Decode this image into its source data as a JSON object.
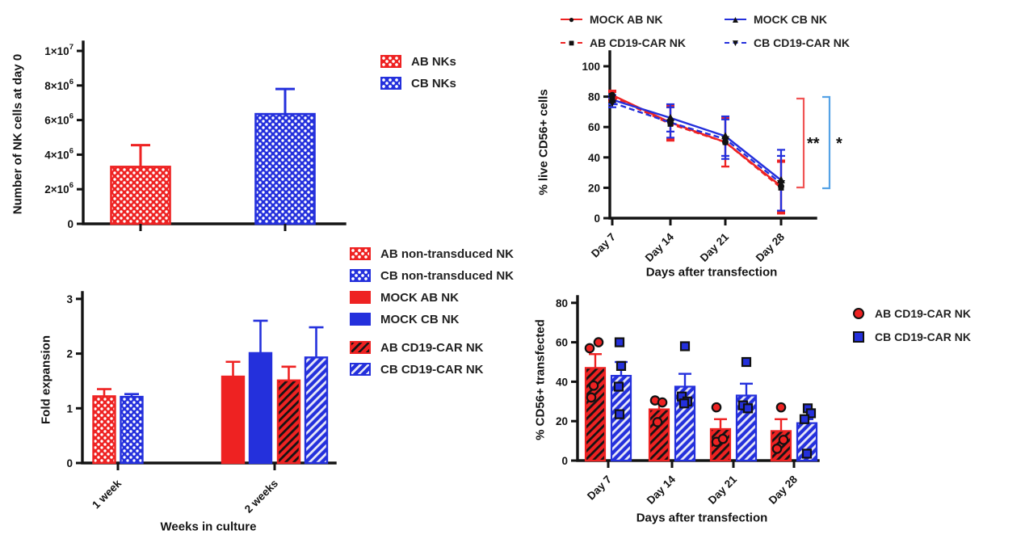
{
  "figure": {
    "background": "#FFFFFF"
  },
  "colors": {
    "red": "#EE2222",
    "blue": "#2430DC",
    "light_red": "#F05454",
    "light_blue": "#55A2E6"
  },
  "chart_data": [
    {
      "id": "nk-cells-day0",
      "type": "bar",
      "title": "",
      "ylabel": "Number of NK cells at day 0",
      "xlabel": "",
      "categories": [
        "AB NKs",
        "CB NKs"
      ],
      "values": [
        3300000,
        6350000
      ],
      "error_tops": [
        4550000,
        7800000
      ],
      "ylim": [
        0,
        10000000
      ],
      "yticks": [
        {
          "label": "0",
          "value": 0
        },
        {
          "label": "2×10",
          "sup": "6",
          "value": 2000000
        },
        {
          "label": "4×10",
          "sup": "6",
          "value": 4000000
        },
        {
          "label": "6×10",
          "sup": "6",
          "value": 6000000
        },
        {
          "label": "8×10",
          "sup": "6",
          "value": 8000000
        },
        {
          "label": "1×10",
          "sup": "7",
          "value": 10000000
        }
      ],
      "legend": [
        {
          "label": "AB NKs",
          "fill": "checker-red"
        },
        {
          "label": "CB NKs",
          "fill": "checker-blue"
        }
      ]
    },
    {
      "id": "live-cd56",
      "type": "line",
      "ylabel": "% live CD56+ cells",
      "xlabel": "Days after transfection",
      "categories": [
        "Day 7",
        "Day 14",
        "Day 21",
        "Day 28"
      ],
      "ylim": [
        0,
        100
      ],
      "yticks": [
        0,
        20,
        40,
        60,
        80,
        100
      ],
      "series": [
        {
          "name": "MOCK AB NK",
          "color": "red",
          "line": "solid",
          "marker": "circle",
          "values": [
            81,
            63,
            50,
            21
          ],
          "errors": [
            3,
            11,
            16,
            17
          ]
        },
        {
          "name": "AB CD19-CAR NK",
          "color": "red",
          "line": "dashed",
          "marker": "square",
          "values": [
            80,
            62,
            50,
            20
          ],
          "errors": [
            3,
            11,
            16,
            17
          ]
        },
        {
          "name": "MOCK CB NK",
          "color": "blue",
          "line": "solid",
          "marker": "triangle-up",
          "values": [
            78,
            66,
            54,
            25
          ],
          "errors": [
            3,
            9,
            13,
            20
          ]
        },
        {
          "name": "CB CD19-CAR NK",
          "color": "blue",
          "line": "dashed",
          "marker": "triangle-down",
          "values": [
            76,
            63,
            52,
            23
          ],
          "errors": [
            3,
            10,
            13,
            18
          ]
        }
      ],
      "significance": [
        {
          "text": "**",
          "bracket_color": "light_red"
        },
        {
          "text": "*",
          "bracket_color": "light_blue"
        }
      ]
    },
    {
      "id": "fold-expansion",
      "type": "bar",
      "ylabel": "Fold expansion",
      "xlabel": "Weeks in culture",
      "ylim": [
        0,
        3
      ],
      "yticks": [
        0,
        1,
        2,
        3
      ],
      "groups": [
        {
          "category": "1 week",
          "bars": [
            {
              "series": "AB non-transduced NK",
              "fill": "checker-red",
              "value": 1.22,
              "error_top": 1.35
            },
            {
              "series": "CB non-transduced NK",
              "fill": "checker-blue",
              "value": 1.21,
              "error_top": 1.26
            }
          ]
        },
        {
          "category": "2 weeks",
          "bars": [
            {
              "series": "MOCK AB NK",
              "fill": "solid-red",
              "value": 1.58,
              "error_top": 1.85
            },
            {
              "series": "MOCK CB NK",
              "fill": "solid-blue",
              "value": 2.01,
              "error_top": 2.6
            },
            {
              "series": "AB CD19-CAR NK",
              "fill": "hatch-red",
              "value": 1.51,
              "error_top": 1.76
            },
            {
              "series": "CB CD19-CAR NK",
              "fill": "hatch-blue",
              "value": 1.93,
              "error_top": 2.48
            }
          ]
        }
      ],
      "legend": [
        {
          "label": "AB non-transduced NK",
          "fill": "checker-red"
        },
        {
          "label": "CB non-transduced NK",
          "fill": "checker-blue"
        },
        {
          "label": "MOCK AB NK",
          "fill": "solid-red"
        },
        {
          "label": "MOCK CB NK",
          "fill": "solid-blue"
        },
        {
          "label": "AB CD19-CAR NK",
          "fill": "hatch-red",
          "gap_before": true
        },
        {
          "label": "CB CD19-CAR NK",
          "fill": "hatch-blue"
        }
      ]
    },
    {
      "id": "cd56-transfected",
      "type": "bar-scatter",
      "ylabel": "% CD56+ transfected",
      "xlabel": "Days after transfection",
      "categories": [
        "Day 7",
        "Day 14",
        "Day 21",
        "Day 28"
      ],
      "ylim": [
        0,
        80
      ],
      "yticks": [
        0,
        20,
        40,
        60,
        80
      ],
      "series": [
        {
          "name": "AB CD19-CAR NK",
          "color": "red",
          "fill": "hatch-red",
          "marker": "circle",
          "values": [
            47,
            26,
            16,
            15
          ],
          "error_tops": [
            54,
            29.5,
            21,
            21
          ],
          "points": [
            [
              [
                57,
                -7
              ],
              [
                60,
                4
              ],
              [
                38,
                -2
              ],
              [
                32,
                -5
              ]
            ],
            [
              [
                30.5,
                -5
              ],
              [
                29.5,
                4
              ],
              [
                19.5,
                -2
              ]
            ],
            [
              [
                27,
                -5
              ],
              [
                9.5,
                -5
              ],
              [
                11,
                3
              ]
            ],
            [
              [
                27,
                0
              ],
              [
                10.5,
                3
              ],
              [
                6,
                -5
              ]
            ]
          ]
        },
        {
          "name": "CB CD19-CAR NK",
          "color": "blue",
          "fill": "hatch-blue",
          "marker": "square",
          "values": [
            43,
            37.5,
            33,
            19
          ],
          "error_tops": [
            50,
            44,
            39,
            21
          ],
          "points": [
            [
              [
                60,
                -2
              ],
              [
                48,
                0
              ],
              [
                37.5,
                -3
              ],
              [
                23.5,
                -2
              ]
            ],
            [
              [
                58,
                0
              ],
              [
                32.5,
                -4
              ],
              [
                30,
                3
              ],
              [
                29,
                -1
              ]
            ],
            [
              [
                50,
                0
              ],
              [
                28,
                -4
              ],
              [
                26.5,
                2
              ]
            ],
            [
              [
                26.5,
                1
              ],
              [
                24,
                5
              ],
              [
                21,
                -3
              ],
              [
                3.5,
                0
              ]
            ]
          ]
        }
      ],
      "legend": [
        {
          "label": "AB CD19-CAR NK",
          "marker": "circle",
          "color": "red"
        },
        {
          "label": "CB CD19-CAR NK",
          "marker": "square",
          "color": "blue"
        }
      ]
    }
  ]
}
